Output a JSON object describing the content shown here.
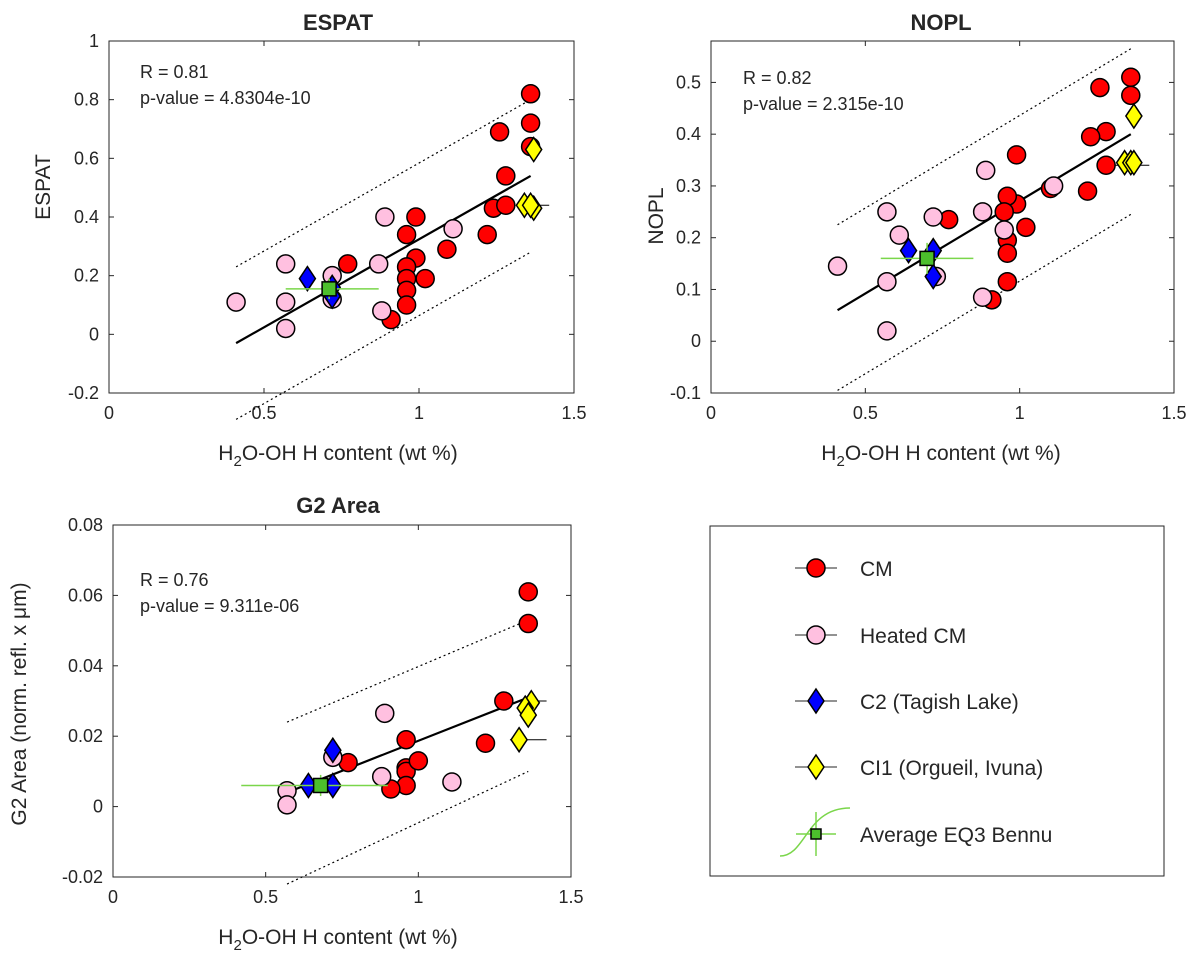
{
  "colors": {
    "cm": "#ff0000",
    "heated_cm": "#ffc0e0",
    "c2": "#0000ff",
    "ci1": "#ffff00",
    "bennu": "#4cbf2c",
    "bennu_errorbar": "#7ad64a"
  },
  "legend": {
    "items": [
      {
        "key": "cm",
        "label": "CM",
        "marker": "circle"
      },
      {
        "key": "heated_cm",
        "label": "Heated CM",
        "marker": "circle"
      },
      {
        "key": "c2",
        "label": "C2 (Tagish Lake)",
        "marker": "diamond"
      },
      {
        "key": "ci1",
        "label": "CI1 (Orgueil, Ivuna)",
        "marker": "diamond"
      },
      {
        "key": "bennu",
        "label": "Average EQ3 Bennu",
        "marker": "square"
      }
    ]
  },
  "chart_data": [
    {
      "type": "scatter",
      "title": "ESPAT",
      "ylabel": "ESPAT",
      "xlabel": "H2O-OH H content (wt %)",
      "xlim": [
        0,
        1.5
      ],
      "ylim": [
        -0.2,
        1
      ],
      "xticks": [
        0,
        0.5,
        1,
        1.5
      ],
      "xtick_labels": [
        "0",
        "0.5",
        "1",
        "1.5"
      ],
      "yticks": [
        -0.2,
        0,
        0.2,
        0.4,
        0.6,
        0.8,
        1
      ],
      "ytick_labels": [
        "-0.2",
        "0",
        "0.2",
        "0.4",
        "0.6",
        "0.8",
        "1"
      ],
      "r_text": "R = 0.81",
      "p_text": "p-value = 4.8304e-10",
      "fit": {
        "x": [
          0.41,
          1.36
        ],
        "y": [
          -0.03,
          0.54
        ]
      },
      "bounds": {
        "upper": {
          "x": [
            0.41,
            1.36
          ],
          "y": [
            0.23,
            0.8
          ]
        },
        "lower": {
          "x": [
            0.41,
            1.36
          ],
          "y": [
            -0.29,
            0.28
          ]
        }
      },
      "series": [
        {
          "key": "cm",
          "name": "CM",
          "points": [
            [
              1.36,
              0.82
            ],
            [
              1.36,
              0.72
            ],
            [
              1.36,
              0.64
            ],
            [
              1.26,
              0.69
            ],
            [
              1.28,
              0.54
            ],
            [
              1.24,
              0.43
            ],
            [
              1.28,
              0.44
            ],
            [
              1.22,
              0.34
            ],
            [
              1.09,
              0.29
            ],
            [
              0.99,
              0.4
            ],
            [
              0.99,
              0.26
            ],
            [
              0.96,
              0.34
            ],
            [
              0.96,
              0.23
            ],
            [
              0.96,
              0.19
            ],
            [
              0.96,
              0.15
            ],
            [
              0.96,
              0.1
            ],
            [
              0.91,
              0.05
            ],
            [
              1.02,
              0.19
            ],
            [
              0.77,
              0.24
            ]
          ]
        },
        {
          "key": "heated_cm",
          "name": "Heated CM",
          "points": [
            [
              0.41,
              0.11
            ],
            [
              0.57,
              0.24
            ],
            [
              0.57,
              0.11
            ],
            [
              0.57,
              0.02
            ],
            [
              0.72,
              0.2
            ],
            [
              0.72,
              0.12
            ],
            [
              0.87,
              0.24
            ],
            [
              0.88,
              0.08
            ],
            [
              0.89,
              0.4
            ],
            [
              1.11,
              0.36
            ]
          ]
        },
        {
          "key": "c2",
          "name": "C2 (Tagish Lake)",
          "points": [
            [
              0.64,
              0.19
            ],
            [
              0.72,
              0.16
            ],
            [
              0.72,
              0.13
            ]
          ]
        },
        {
          "key": "ci1",
          "name": "CI1 (Orgueil, Ivuna)",
          "points": [
            [
              1.37,
              0.63
            ],
            [
              1.34,
              0.44
            ],
            [
              1.37,
              0.43
            ],
            [
              1.36,
              0.44
            ]
          ]
        },
        {
          "key": "bennu",
          "name": "Average EQ3 Bennu",
          "points": [
            [
              0.71,
              0.155
            ]
          ],
          "xerr": [
            0.57,
            0.87
          ],
          "yerr": [
            0.12,
            0.19
          ]
        }
      ],
      "errorbars": [
        {
          "x": [
            1.36,
            1.42
          ],
          "y": [
            0.44,
            0.44
          ]
        }
      ]
    },
    {
      "type": "scatter",
      "title": "NOPL",
      "ylabel": "NOPL",
      "xlabel": "H2O-OH H content (wt %)",
      "xlim": [
        0,
        1.5
      ],
      "ylim": [
        -0.1,
        0.58
      ],
      "xticks": [
        0,
        0.5,
        1,
        1.5
      ],
      "xtick_labels": [
        "0",
        "0.5",
        "1",
        "1.5"
      ],
      "yticks": [
        -0.1,
        0,
        0.1,
        0.2,
        0.3,
        0.4,
        0.5
      ],
      "ytick_labels": [
        "-0.1",
        "0",
        "0.1",
        "0.2",
        "0.3",
        "0.4",
        "0.5"
      ],
      "r_text": "R = 0.82",
      "p_text": "p-value = 2.315e-10",
      "fit": {
        "x": [
          0.41,
          1.36
        ],
        "y": [
          0.06,
          0.4
        ]
      },
      "bounds": {
        "upper": {
          "x": [
            0.41,
            1.36
          ],
          "y": [
            0.225,
            0.565
          ]
        },
        "lower": {
          "x": [
            0.41,
            1.36
          ],
          "y": [
            -0.095,
            0.245
          ]
        }
      },
      "series": [
        {
          "key": "cm",
          "name": "CM",
          "points": [
            [
              1.36,
              0.51
            ],
            [
              1.36,
              0.475
            ],
            [
              1.26,
              0.49
            ],
            [
              1.28,
              0.405
            ],
            [
              1.23,
              0.395
            ],
            [
              1.22,
              0.29
            ],
            [
              1.28,
              0.34
            ],
            [
              1.1,
              0.295
            ],
            [
              0.99,
              0.36
            ],
            [
              0.99,
              0.265
            ],
            [
              0.96,
              0.28
            ],
            [
              0.95,
              0.25
            ],
            [
              0.96,
              0.195
            ],
            [
              0.96,
              0.17
            ],
            [
              0.96,
              0.115
            ],
            [
              0.91,
              0.08
            ],
            [
              1.02,
              0.22
            ],
            [
              0.77,
              0.235
            ]
          ]
        },
        {
          "key": "heated_cm",
          "name": "Heated CM",
          "points": [
            [
              0.41,
              0.145
            ],
            [
              0.57,
              0.25
            ],
            [
              0.57,
              0.115
            ],
            [
              0.57,
              0.02
            ],
            [
              0.61,
              0.205
            ],
            [
              0.72,
              0.24
            ],
            [
              0.73,
              0.125
            ],
            [
              0.88,
              0.25
            ],
            [
              0.88,
              0.085
            ],
            [
              0.89,
              0.33
            ],
            [
              0.95,
              0.215
            ],
            [
              1.11,
              0.3
            ]
          ]
        },
        {
          "key": "c2",
          "name": "C2 (Tagish Lake)",
          "points": [
            [
              0.64,
              0.175
            ],
            [
              0.72,
              0.175
            ],
            [
              0.72,
              0.125
            ]
          ]
        },
        {
          "key": "ci1",
          "name": "CI1 (Orgueil, Ivuna)",
          "points": [
            [
              1.37,
              0.435
            ],
            [
              1.34,
              0.345
            ],
            [
              1.36,
              0.345
            ],
            [
              1.37,
              0.345
            ]
          ]
        },
        {
          "key": "bennu",
          "name": "Average EQ3 Bennu",
          "points": [
            [
              0.7,
              0.16
            ]
          ],
          "xerr": [
            0.55,
            0.85
          ],
          "yerr": [
            0.13,
            0.19
          ]
        }
      ],
      "errorbars": [
        {
          "x": [
            1.26,
            1.42
          ],
          "y": [
            0.34,
            0.34
          ]
        }
      ]
    },
    {
      "type": "scatter",
      "title": "G2 Area",
      "ylabel": "G2 Area (norm. refl. x μm)",
      "xlabel": "H2O-OH H content (wt %)",
      "xlim": [
        0,
        1.5
      ],
      "ylim": [
        -0.02,
        0.08
      ],
      "xticks": [
        0,
        0.5,
        1,
        1.5
      ],
      "xtick_labels": [
        "0",
        "0.5",
        "1",
        "1.5"
      ],
      "yticks": [
        -0.02,
        0,
        0.02,
        0.04,
        0.06,
        0.08
      ],
      "ytick_labels": [
        "-0.02",
        "0",
        "0.02",
        "0.04",
        "0.06",
        "0.08"
      ],
      "r_text": "R = 0.76",
      "p_text": "p-value = 9.311e-06",
      "fit": {
        "x": [
          0.57,
          1.36
        ],
        "y": [
          0.004,
          0.031
        ]
      },
      "bounds": {
        "upper": {
          "x": [
            0.57,
            1.36
          ],
          "y": [
            0.024,
            0.053
          ]
        },
        "lower": {
          "x": [
            0.57,
            1.36
          ],
          "y": [
            -0.022,
            0.01
          ]
        }
      },
      "series": [
        {
          "key": "cm",
          "name": "CM",
          "points": [
            [
              1.36,
              0.061
            ],
            [
              1.36,
              0.052
            ],
            [
              1.28,
              0.03
            ],
            [
              1.22,
              0.018
            ],
            [
              0.96,
              0.019
            ],
            [
              0.96,
              0.011
            ],
            [
              0.96,
              0.01
            ],
            [
              0.96,
              0.006
            ],
            [
              1.0,
              0.013
            ],
            [
              0.91,
              0.005
            ],
            [
              0.77,
              0.0125
            ]
          ]
        },
        {
          "key": "heated_cm",
          "name": "Heated CM",
          "points": [
            [
              0.57,
              0.0045
            ],
            [
              0.57,
              0.0005
            ],
            [
              0.72,
              0.014
            ],
            [
              0.88,
              0.0085
            ],
            [
              0.89,
              0.0265
            ],
            [
              1.11,
              0.007
            ]
          ]
        },
        {
          "key": "c2",
          "name": "C2 (Tagish Lake)",
          "points": [
            [
              0.64,
              0.006
            ],
            [
              0.72,
              0.016
            ],
            [
              0.72,
              0.006
            ]
          ]
        },
        {
          "key": "ci1",
          "name": "CI1 (Orgueil, Ivuna)",
          "points": [
            [
              1.37,
              0.0295
            ],
            [
              1.35,
              0.028
            ],
            [
              1.36,
              0.026
            ],
            [
              1.33,
              0.019
            ]
          ]
        },
        {
          "key": "bennu",
          "name": "Average EQ3 Bennu",
          "points": [
            [
              0.68,
              0.006
            ]
          ],
          "xerr": [
            0.42,
            0.9
          ],
          "yerr": [
            0.003,
            0.009
          ]
        }
      ],
      "errorbars": [
        {
          "x": [
            1.3,
            1.42
          ],
          "y": [
            0.019,
            0.019
          ]
        },
        {
          "x": [
            1.35,
            1.42
          ],
          "y": [
            0.03,
            0.03
          ]
        }
      ]
    }
  ]
}
